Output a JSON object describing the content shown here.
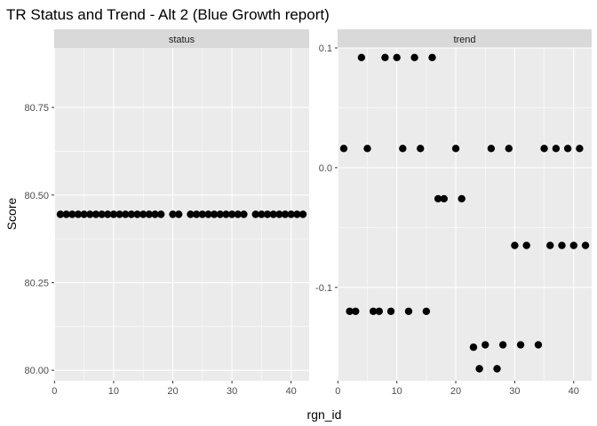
{
  "chart_data": {
    "type": "scatter",
    "title": "TR Status and Trend - Alt 2 (Blue Growth report)",
    "xlabel": "rgn_id",
    "ylabel": "Score",
    "panels": [
      {
        "name": "status",
        "xlim": [
          -0.05,
          43.05
        ],
        "ylim": [
          79.97,
          80.92
        ],
        "xticks": [
          0,
          10,
          20,
          30,
          40
        ],
        "yticks": [
          80.0,
          80.25,
          80.5,
          80.75
        ],
        "ytick_labels": [
          "80.00",
          "80.25",
          "80.50",
          "80.75"
        ],
        "x": [
          1,
          2,
          3,
          4,
          5,
          6,
          7,
          8,
          9,
          10,
          11,
          12,
          13,
          14,
          15,
          16,
          17,
          18,
          20,
          21,
          23,
          24,
          25,
          26,
          27,
          28,
          29,
          30,
          31,
          32,
          34,
          35,
          36,
          37,
          38,
          39,
          40,
          41,
          42
        ],
        "y": [
          80.445,
          80.445,
          80.445,
          80.445,
          80.445,
          80.445,
          80.445,
          80.445,
          80.445,
          80.445,
          80.445,
          80.445,
          80.445,
          80.445,
          80.445,
          80.445,
          80.445,
          80.445,
          80.445,
          80.445,
          80.445,
          80.445,
          80.445,
          80.445,
          80.445,
          80.445,
          80.445,
          80.445,
          80.445,
          80.445,
          80.445,
          80.445,
          80.445,
          80.445,
          80.445,
          80.445,
          80.445,
          80.445,
          80.445
        ]
      },
      {
        "name": "trend",
        "xlim": [
          -0.05,
          43.05
        ],
        "ylim": [
          -0.178,
          0.1
        ],
        "xticks": [
          0,
          10,
          20,
          30,
          40
        ],
        "yticks": [
          -0.1,
          0.0,
          0.1
        ],
        "ytick_labels": [
          "-0.1",
          "0.0",
          "0.1"
        ],
        "x": [
          1,
          2,
          3,
          4,
          5,
          6,
          7,
          8,
          9,
          10,
          11,
          12,
          13,
          14,
          15,
          16,
          17,
          18,
          20,
          21,
          23,
          24,
          25,
          26,
          27,
          28,
          29,
          30,
          31,
          32,
          34,
          35,
          36,
          37,
          38,
          39,
          40,
          41,
          42
        ],
        "y": [
          0.016,
          -0.12,
          -0.12,
          0.092,
          0.016,
          -0.12,
          -0.12,
          0.092,
          -0.12,
          0.092,
          0.016,
          -0.12,
          0.092,
          0.016,
          -0.12,
          0.092,
          -0.026,
          -0.026,
          0.016,
          -0.026,
          -0.15,
          -0.168,
          -0.148,
          0.016,
          -0.168,
          -0.148,
          0.016,
          -0.065,
          -0.148,
          -0.065,
          -0.148,
          0.016,
          -0.065,
          0.016,
          -0.065,
          0.016,
          -0.065,
          0.016,
          -0.065
        ]
      }
    ]
  }
}
